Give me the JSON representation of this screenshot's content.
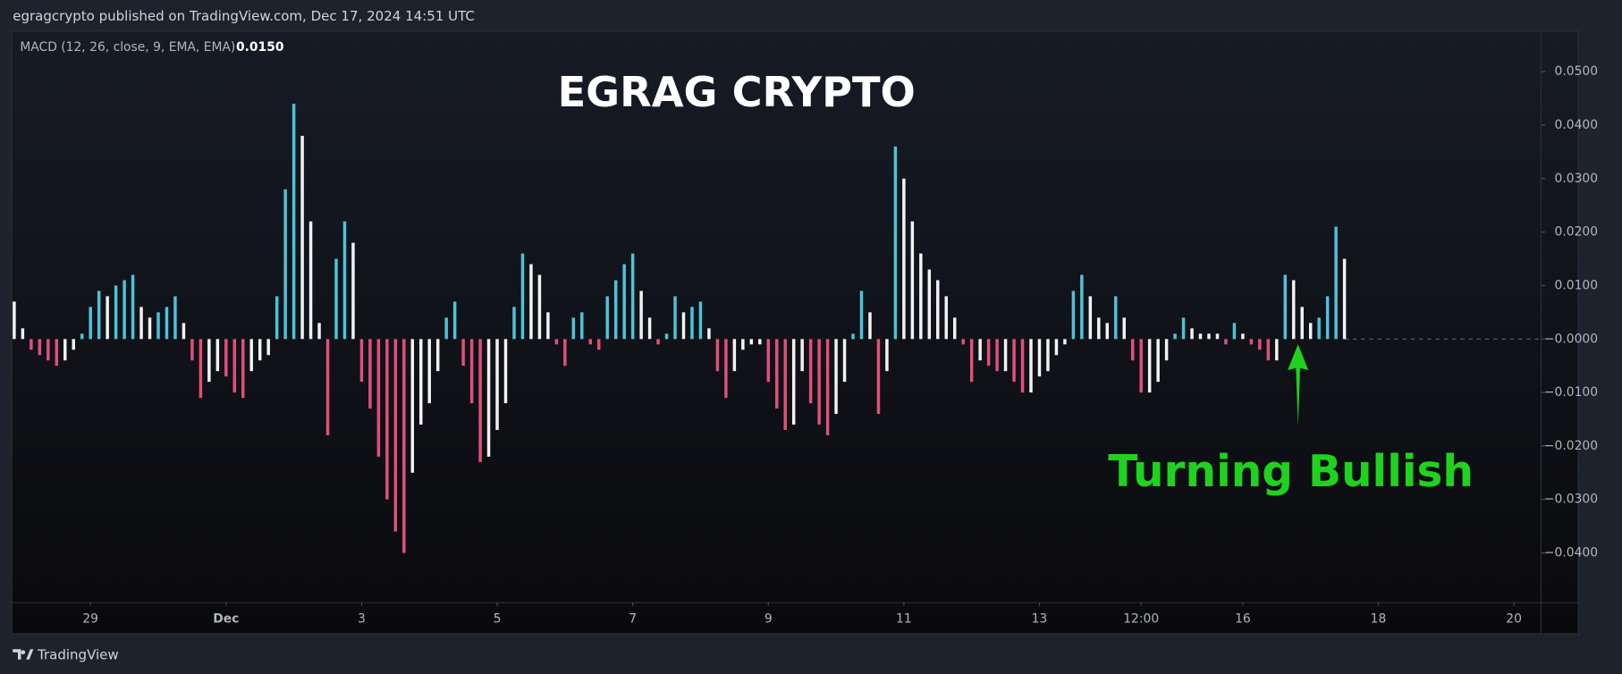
{
  "header": {
    "publisher": "egragcrypto published on TradingView.com, Dec 17, 2024 14:51 UTC"
  },
  "footer": {
    "brand": "TradingView"
  },
  "chart_data": {
    "type": "histogram-bar",
    "indicator": "MACD (12, 26, close, 9, EMA, EMA)",
    "indicator_value": "0.0150",
    "title": "EGRAG CRYPTO",
    "annotation": "Turning Bullish",
    "annotation_color": "#1fd21f",
    "colors": {
      "grow_above": "#4dc3d9",
      "fall_above": "#f2f2f2",
      "grow_below": "#f2f2f2",
      "fall_below": "#e0507a"
    },
    "values": [
      0.007,
      0.002,
      -0.002,
      -0.003,
      -0.004,
      -0.005,
      -0.004,
      -0.002,
      0.001,
      0.006,
      0.009,
      0.008,
      0.01,
      0.011,
      0.012,
      0.006,
      0.004,
      0.005,
      0.006,
      0.008,
      0.003,
      -0.004,
      -0.011,
      -0.008,
      -0.006,
      -0.007,
      -0.01,
      -0.011,
      -0.006,
      -0.004,
      -0.003,
      0.008,
      0.028,
      0.044,
      0.038,
      0.022,
      0.003,
      -0.018,
      0.015,
      0.022,
      0.018,
      -0.008,
      -0.013,
      -0.022,
      -0.03,
      -0.036,
      -0.04,
      -0.025,
      -0.016,
      -0.012,
      -0.006,
      0.004,
      0.007,
      -0.005,
      -0.012,
      -0.023,
      -0.022,
      -0.017,
      -0.012,
      0.006,
      0.016,
      0.014,
      0.012,
      0.005,
      -0.001,
      -0.005,
      0.004,
      0.005,
      -0.001,
      -0.002,
      0.008,
      0.011,
      0.014,
      0.016,
      0.009,
      0.004,
      -0.001,
      0.001,
      0.008,
      0.005,
      0.006,
      0.007,
      0.002,
      -0.006,
      -0.011,
      -0.006,
      -0.002,
      -0.001,
      -0.001,
      -0.008,
      -0.013,
      -0.017,
      -0.016,
      -0.006,
      -0.012,
      -0.016,
      -0.018,
      -0.014,
      -0.008,
      0.001,
      0.009,
      0.005,
      -0.014,
      -0.006,
      0.036,
      0.03,
      0.022,
      0.016,
      0.013,
      0.011,
      0.008,
      0.004,
      -0.001,
      -0.008,
      -0.004,
      -0.005,
      -0.006,
      -0.006,
      -0.008,
      -0.01,
      -0.01,
      -0.007,
      -0.006,
      -0.003,
      -0.001,
      0.009,
      0.012,
      0.008,
      0.004,
      0.003,
      0.008,
      0.004,
      -0.004,
      -0.01,
      -0.01,
      -0.008,
      -0.004,
      0.001,
      0.004,
      0.002,
      0.001,
      0.001,
      0.001,
      -0.001,
      0.003,
      0.001,
      -0.001,
      -0.002,
      -0.004,
      -0.004,
      0.012,
      0.011,
      0.006,
      0.003,
      0.004,
      0.008,
      0.021,
      0.015
    ],
    "xlim": [
      -0.3,
      180.2
    ],
    "xticks": [
      {
        "value": 9,
        "label": "29"
      },
      {
        "value": 25,
        "label": "Dec"
      },
      {
        "value": 41,
        "label": "3"
      },
      {
        "value": 57,
        "label": "5"
      },
      {
        "value": 73,
        "label": "7"
      },
      {
        "value": 89,
        "label": "9"
      },
      {
        "value": 105,
        "label": "11"
      },
      {
        "value": 121,
        "label": "13"
      },
      {
        "value": 133,
        "label": "12:00"
      },
      {
        "value": 145,
        "label": "16"
      },
      {
        "value": 161,
        "label": "18"
      },
      {
        "value": 177,
        "label": "20"
      }
    ],
    "ylim": [
      -0.0493,
      0.0576
    ],
    "yticks": [
      {
        "value": 0.05,
        "label": "0.0500"
      },
      {
        "value": 0.04,
        "label": "0.0400"
      },
      {
        "value": 0.03,
        "label": "0.0300"
      },
      {
        "value": 0.02,
        "label": "0.0200"
      },
      {
        "value": 0.01,
        "label": "0.0100"
      },
      {
        "value": 0,
        "label": "−0.0000"
      },
      {
        "value": -0.01,
        "label": "−0.0100"
      },
      {
        "value": -0.02,
        "label": "−0.0200"
      },
      {
        "value": -0.03,
        "label": "−0.0300"
      },
      {
        "value": -0.04,
        "label": "−0.0400"
      }
    ]
  }
}
